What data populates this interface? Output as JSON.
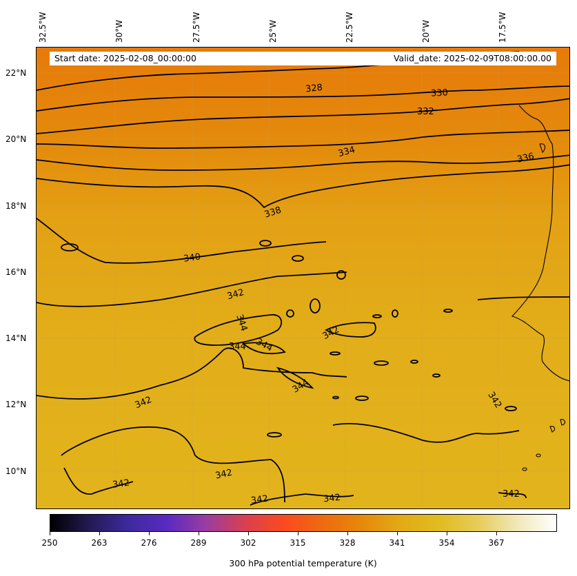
{
  "map": {
    "date_banner": {
      "start_date": "Start date: 2025-02-08_00:00:00",
      "valid_date": "Valid_date: 2025-02-09T08:00:00.00"
    },
    "longitude_labels": [
      "32.5°W",
      "30°W",
      "27.5°W",
      "25°W",
      "22.5°W",
      "20°W",
      "17.5°W"
    ],
    "latitude_labels": [
      "22°N",
      "20°N",
      "18°N",
      "16°N",
      "14°N",
      "12°N",
      "10°N"
    ],
    "contour_labels": [
      "328",
      "330",
      "332",
      "334",
      "336",
      "338",
      "340",
      "342",
      "344"
    ],
    "colorbar": {
      "tick_labels": [
        "250",
        "263",
        "276",
        "289",
        "302",
        "315",
        "328",
        "341",
        "354",
        "367"
      ],
      "title": "300 hPa potential temperature (K)",
      "colors": [
        "#000000",
        "#231a52",
        "#3d2a9e",
        "#5a2ac2",
        "#9a3d9f",
        "#d9404f",
        "#fb4a1f",
        "#ee6a10",
        "#e6880a",
        "#e3aa15",
        "#e1bc20",
        "#e6cc5a",
        "#f0e8b8",
        "#ffffff"
      ]
    },
    "background_colors": {
      "north": "#e67e0b",
      "middle": "#e3a416",
      "south": "#e2b31c"
    }
  }
}
